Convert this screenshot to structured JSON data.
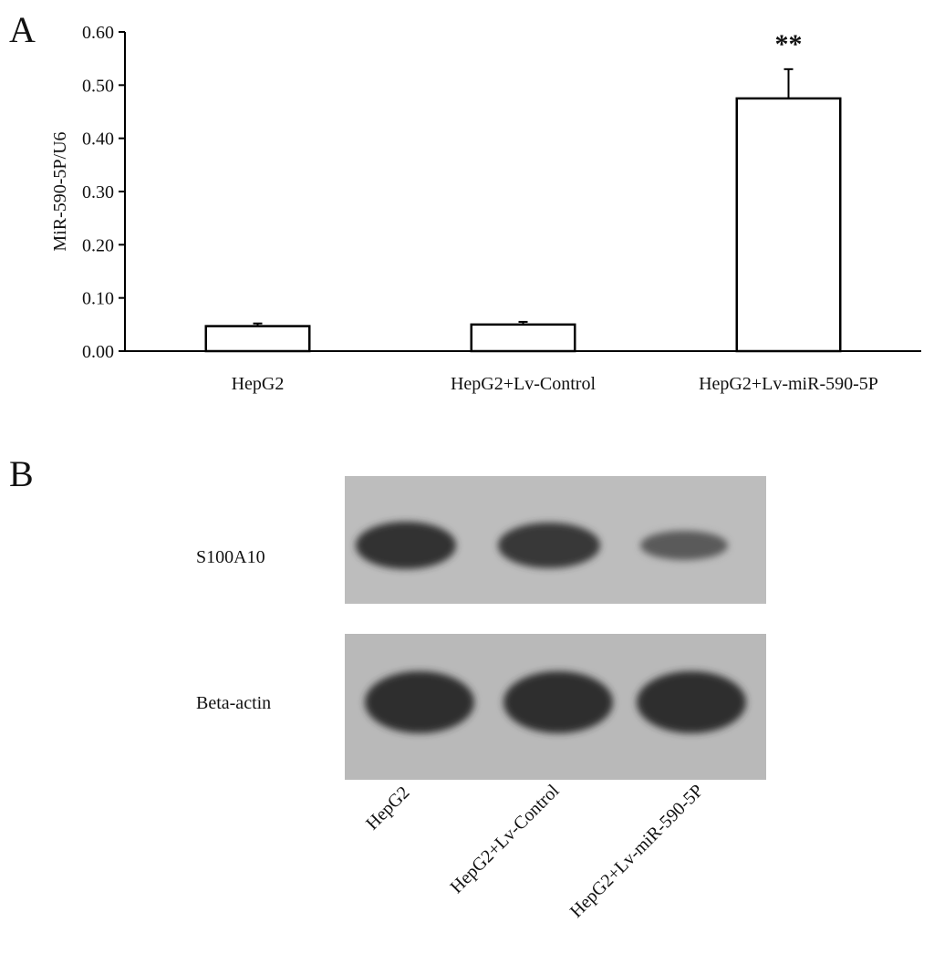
{
  "chart_data": {
    "type": "bar",
    "panel_label": "A",
    "ylabel": "MiR-590-5P/U6",
    "categories": [
      "HepG2",
      "HepG2+Lv-Control",
      "HepG2+Lv-miR-590-5P"
    ],
    "values": [
      0.047,
      0.05,
      0.475
    ],
    "errors": [
      0.005,
      0.005,
      0.055
    ],
    "significance": [
      null,
      null,
      "**"
    ],
    "color": "#ffffff",
    "ylim": [
      0,
      0.6
    ],
    "yticks": [
      {
        "value": 0,
        "label": "0.00"
      },
      {
        "value": 0.1,
        "label": "0.10"
      },
      {
        "value": 0.2,
        "label": "0.20"
      },
      {
        "value": 0.3,
        "label": "0.30"
      },
      {
        "value": 0.4,
        "label": "0.40"
      },
      {
        "value": 0.5,
        "label": "0.50"
      },
      {
        "value": 0.6,
        "label": "0.60"
      }
    ],
    "grid": false
  },
  "blot": {
    "panel_label": "B",
    "rows": [
      "S100A10",
      "Beta-actin"
    ],
    "lanes": [
      "HepG2",
      "HepG2+Lv-Control",
      "HepG2+Lv-miR-590-5P"
    ]
  }
}
